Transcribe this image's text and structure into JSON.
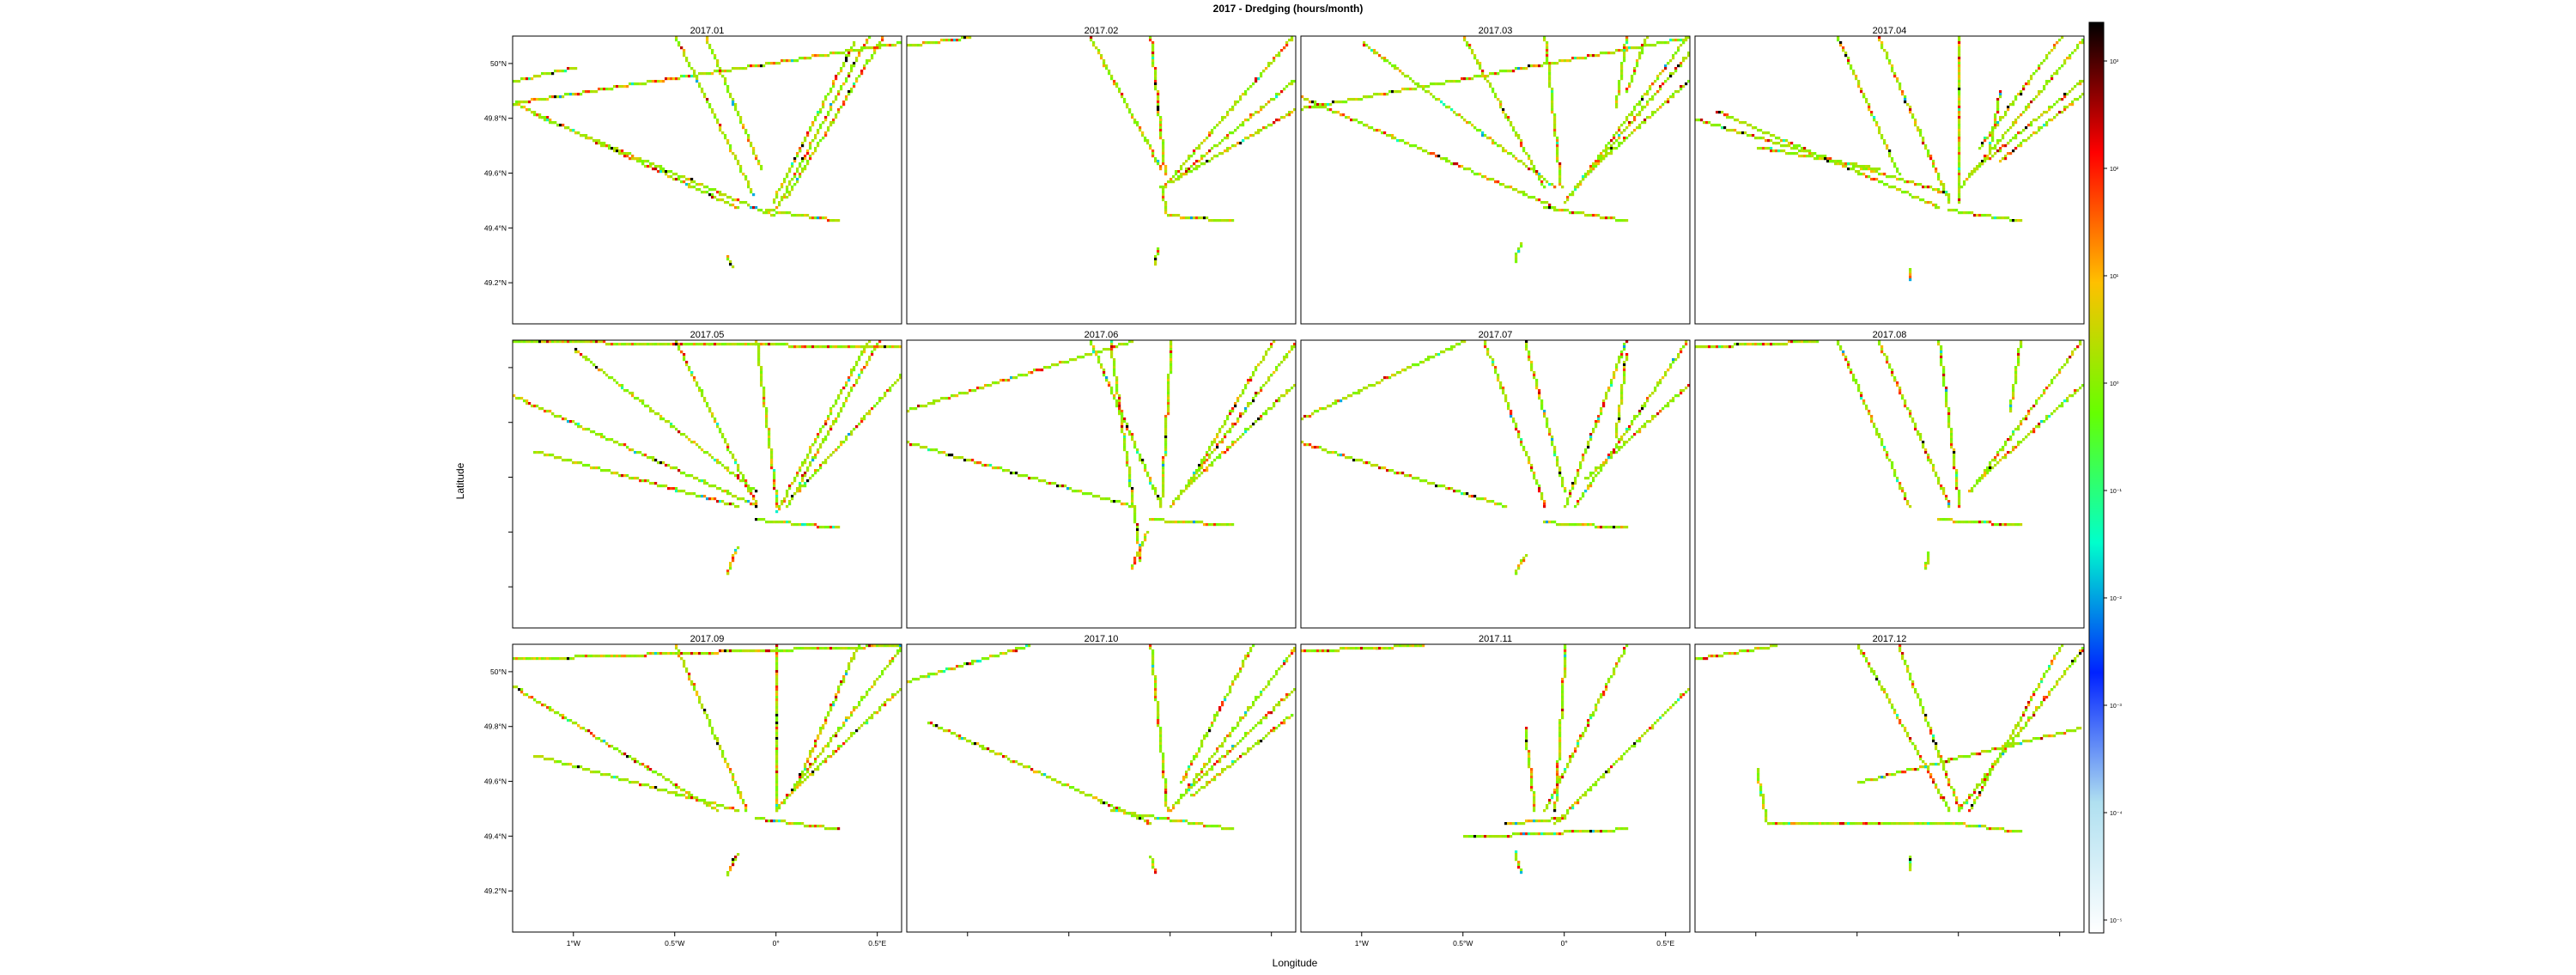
{
  "chart_data": {
    "type": "heatmap",
    "title": "2017 - Dredging (hours/month)",
    "xlabel": "Longitude",
    "ylabel": "Latitude",
    "xlim": [
      -1.3,
      0.62
    ],
    "ylim": [
      49.05,
      50.1
    ],
    "x_ticks": [
      {
        "value": -1.0,
        "label": "1°W"
      },
      {
        "value": -0.5,
        "label": "0.5°W"
      },
      {
        "value": 0.0,
        "label": "0°"
      },
      {
        "value": 0.5,
        "label": "0.5°E"
      }
    ],
    "y_ticks": [
      {
        "value": 50.0,
        "label": "50°N"
      },
      {
        "value": 49.8,
        "label": "49.8°N"
      },
      {
        "value": 49.6,
        "label": "49.6°N"
      },
      {
        "value": 49.4,
        "label": "49.4°N"
      },
      {
        "value": 49.2,
        "label": "49.2°N"
      }
    ],
    "colorbar": {
      "scale": "log",
      "min_exp": -5,
      "max_exp": 3,
      "labels": [
        "10³",
        "10²",
        "10¹",
        "10⁰",
        "10⁻¹",
        "10⁻²",
        "10⁻³",
        "10⁻⁴",
        "10⁻⁵"
      ],
      "colors": [
        "#000000",
        "#ff0000",
        "#ffc000",
        "#66ff00",
        "#00ffcc",
        "#0022ff",
        "#b0e0f0",
        "#ffffff"
      ]
    },
    "panels": [
      {
        "label": "2017.01"
      },
      {
        "label": "2017.02"
      },
      {
        "label": "2017.03"
      },
      {
        "label": "2017.04"
      },
      {
        "label": "2017.05"
      },
      {
        "label": "2017.06"
      },
      {
        "label": "2017.07"
      },
      {
        "label": "2017.08"
      },
      {
        "label": "2017.09"
      },
      {
        "label": "2017.10"
      },
      {
        "label": "2017.11"
      },
      {
        "label": "2017.12"
      }
    ],
    "panel_tracks": [
      [
        [
          [
            -1.3,
            49.86
          ],
          [
            -0.2,
            49.48
          ]
        ],
        [
          [
            -1.3,
            49.94
          ],
          [
            -1.0,
            49.99
          ]
        ],
        [
          [
            -1.3,
            49.86
          ],
          [
            0.62,
            50.08
          ]
        ],
        [
          [
            -1.2,
            49.82
          ],
          [
            -0.02,
            49.45
          ]
        ],
        [
          [
            -0.5,
            50.1
          ],
          [
            -0.12,
            49.53
          ]
        ],
        [
          [
            -0.35,
            50.1
          ],
          [
            -0.08,
            49.62
          ]
        ],
        [
          [
            0.45,
            50.1
          ],
          [
            0.0,
            49.48
          ]
        ],
        [
          [
            0.52,
            50.1
          ],
          [
            0.05,
            49.52
          ]
        ],
        [
          [
            0.38,
            50.08
          ],
          [
            -0.02,
            49.5
          ]
        ],
        [
          [
            -0.05,
            49.47
          ],
          [
            0.3,
            49.43
          ]
        ],
        [
          [
            -0.25,
            49.3
          ],
          [
            -0.22,
            49.26
          ]
        ]
      ],
      [
        [
          [
            -1.3,
            50.07
          ],
          [
            -1.0,
            50.1
          ]
        ],
        [
          [
            -0.4,
            50.1
          ],
          [
            -0.05,
            49.62
          ]
        ],
        [
          [
            -0.1,
            50.1
          ],
          [
            -0.03,
            49.6
          ]
        ],
        [
          [
            0.62,
            49.95
          ],
          [
            0.0,
            49.57
          ]
        ],
        [
          [
            0.6,
            50.1
          ],
          [
            -0.04,
            49.55
          ]
        ],
        [
          [
            0.62,
            49.84
          ],
          [
            0.02,
            49.58
          ]
        ],
        [
          [
            -0.05,
            49.55
          ],
          [
            -0.02,
            49.45
          ]
        ],
        [
          [
            -0.02,
            49.45
          ],
          [
            0.3,
            49.43
          ]
        ],
        [
          [
            -0.07,
            49.33
          ],
          [
            -0.08,
            49.27
          ]
        ]
      ],
      [
        [
          [
            -1.3,
            49.88
          ],
          [
            -0.05,
            49.48
          ]
        ],
        [
          [
            -1.3,
            49.84
          ],
          [
            0.62,
            50.1
          ]
        ],
        [
          [
            -1.0,
            50.08
          ],
          [
            -0.05,
            49.55
          ]
        ],
        [
          [
            -0.5,
            50.1
          ],
          [
            -0.1,
            49.55
          ]
        ],
        [
          [
            -0.1,
            50.1
          ],
          [
            -0.02,
            49.55
          ]
        ],
        [
          [
            0.6,
            50.1
          ],
          [
            0.0,
            49.5
          ]
        ],
        [
          [
            0.62,
            50.05
          ],
          [
            0.05,
            49.55
          ]
        ],
        [
          [
            0.62,
            49.95
          ],
          [
            0.1,
            49.6
          ]
        ],
        [
          [
            0.3,
            50.1
          ],
          [
            0.25,
            49.85
          ]
        ],
        [
          [
            0.4,
            50.1
          ],
          [
            0.3,
            49.9
          ]
        ],
        [
          [
            -0.1,
            49.48
          ],
          [
            0.3,
            49.43
          ]
        ],
        [
          [
            -0.22,
            49.35
          ],
          [
            -0.25,
            49.28
          ]
        ]
      ],
      [
        [
          [
            -1.2,
            49.83
          ],
          [
            -0.1,
            49.48
          ]
        ],
        [
          [
            -1.3,
            49.8
          ],
          [
            -0.05,
            49.53
          ]
        ],
        [
          [
            -1.0,
            49.7
          ],
          [
            -0.4,
            49.62
          ]
        ],
        [
          [
            -0.6,
            50.1
          ],
          [
            -0.3,
            49.6
          ]
        ],
        [
          [
            -0.4,
            50.1
          ],
          [
            -0.05,
            49.5
          ]
        ],
        [
          [
            0.0,
            50.1
          ],
          [
            0.0,
            49.5
          ]
        ],
        [
          [
            0.62,
            50.1
          ],
          [
            0.0,
            49.55
          ]
        ],
        [
          [
            0.62,
            49.95
          ],
          [
            0.05,
            49.6
          ]
        ],
        [
          [
            0.5,
            50.1
          ],
          [
            0.1,
            49.7
          ]
        ],
        [
          [
            0.62,
            49.9
          ],
          [
            0.2,
            49.65
          ]
        ],
        [
          [
            -0.05,
            49.47
          ],
          [
            0.3,
            49.43
          ]
        ],
        [
          [
            0.2,
            49.9
          ],
          [
            0.15,
            49.7
          ]
        ],
        [
          [
            -0.25,
            49.25
          ],
          [
            -0.25,
            49.22
          ]
        ]
      ],
      [
        [
          [
            -1.3,
            49.9
          ],
          [
            -0.1,
            49.5
          ]
        ],
        [
          [
            -1.3,
            50.1
          ],
          [
            0.62,
            50.08
          ]
        ],
        [
          [
            -1.2,
            49.7
          ],
          [
            -0.2,
            49.5
          ]
        ],
        [
          [
            -1.0,
            50.07
          ],
          [
            -0.1,
            49.55
          ]
        ],
        [
          [
            -0.5,
            50.1
          ],
          [
            -0.1,
            49.5
          ]
        ],
        [
          [
            -0.1,
            50.1
          ],
          [
            0.0,
            49.5
          ]
        ],
        [
          [
            0.45,
            50.1
          ],
          [
            0.0,
            49.48
          ]
        ],
        [
          [
            0.5,
            50.1
          ],
          [
            0.05,
            49.5
          ]
        ],
        [
          [
            0.62,
            49.98
          ],
          [
            0.1,
            49.55
          ]
        ],
        [
          [
            -0.1,
            49.45
          ],
          [
            0.3,
            49.42
          ]
        ],
        [
          [
            -0.2,
            49.35
          ],
          [
            -0.25,
            49.25
          ]
        ]
      ],
      [
        [
          [
            -1.3,
            49.85
          ],
          [
            -0.2,
            50.1
          ]
        ],
        [
          [
            -1.3,
            49.73
          ],
          [
            -0.2,
            49.5
          ]
        ],
        [
          [
            -0.3,
            50.1
          ],
          [
            -0.15,
            49.3
          ]
        ],
        [
          [
            -0.4,
            50.1
          ],
          [
            -0.05,
            49.5
          ]
        ],
        [
          [
            0.0,
            50.1
          ],
          [
            -0.05,
            49.5
          ]
        ],
        [
          [
            0.62,
            50.1
          ],
          [
            0.0,
            49.5
          ]
        ],
        [
          [
            0.62,
            49.95
          ],
          [
            0.05,
            49.55
          ]
        ],
        [
          [
            0.5,
            50.1
          ],
          [
            0.1,
            49.6
          ]
        ],
        [
          [
            -0.1,
            49.45
          ],
          [
            0.3,
            49.43
          ]
        ],
        [
          [
            -0.12,
            49.4
          ],
          [
            -0.2,
            49.27
          ]
        ]
      ],
      [
        [
          [
            -1.3,
            49.82
          ],
          [
            -0.5,
            50.1
          ]
        ],
        [
          [
            -1.3,
            49.73
          ],
          [
            -0.3,
            49.5
          ]
        ],
        [
          [
            -0.4,
            50.1
          ],
          [
            -0.1,
            49.5
          ]
        ],
        [
          [
            -0.2,
            50.1
          ],
          [
            0.0,
            49.55
          ]
        ],
        [
          [
            0.3,
            50.1
          ],
          [
            0.0,
            49.5
          ]
        ],
        [
          [
            0.6,
            50.1
          ],
          [
            0.05,
            49.5
          ]
        ],
        [
          [
            0.62,
            49.95
          ],
          [
            0.1,
            49.6
          ]
        ],
        [
          [
            0.3,
            50.05
          ],
          [
            0.25,
            49.75
          ]
        ],
        [
          [
            -0.1,
            49.44
          ],
          [
            0.3,
            49.42
          ]
        ],
        [
          [
            -0.2,
            49.32
          ],
          [
            -0.25,
            49.25
          ]
        ]
      ],
      [
        [
          [
            -1.3,
            50.08
          ],
          [
            -0.7,
            50.1
          ]
        ],
        [
          [
            -0.6,
            50.1
          ],
          [
            -0.25,
            49.5
          ]
        ],
        [
          [
            -0.4,
            50.1
          ],
          [
            -0.05,
            49.5
          ]
        ],
        [
          [
            -0.1,
            50.1
          ],
          [
            0.0,
            49.5
          ]
        ],
        [
          [
            0.6,
            50.1
          ],
          [
            0.05,
            49.55
          ]
        ],
        [
          [
            0.62,
            49.95
          ],
          [
            0.1,
            49.6
          ]
        ],
        [
          [
            0.3,
            50.1
          ],
          [
            0.25,
            49.85
          ]
        ],
        [
          [
            -0.1,
            49.45
          ],
          [
            0.3,
            49.43
          ]
        ],
        [
          [
            -0.15,
            49.33
          ],
          [
            -0.17,
            49.27
          ]
        ]
      ],
      [
        [
          [
            -1.3,
            50.05
          ],
          [
            0.62,
            50.1
          ]
        ],
        [
          [
            -1.3,
            49.95
          ],
          [
            -0.3,
            49.5
          ]
        ],
        [
          [
            -1.2,
            49.7
          ],
          [
            -0.2,
            49.5
          ]
        ],
        [
          [
            -0.5,
            50.1
          ],
          [
            -0.15,
            49.5
          ]
        ],
        [
          [
            0.0,
            50.1
          ],
          [
            0.0,
            49.5
          ]
        ],
        [
          [
            0.62,
            50.1
          ],
          [
            0.0,
            49.5
          ]
        ],
        [
          [
            0.62,
            49.95
          ],
          [
            0.05,
            49.55
          ]
        ],
        [
          [
            0.4,
            50.1
          ],
          [
            0.1,
            49.6
          ]
        ],
        [
          [
            -0.1,
            49.47
          ],
          [
            0.3,
            49.43
          ]
        ],
        [
          [
            -0.2,
            49.34
          ],
          [
            -0.25,
            49.26
          ]
        ]
      ],
      [
        [
          [
            -1.3,
            49.97
          ],
          [
            -0.7,
            50.1
          ]
        ],
        [
          [
            -1.2,
            49.82
          ],
          [
            -0.1,
            49.45
          ]
        ],
        [
          [
            -0.1,
            50.1
          ],
          [
            -0.02,
            49.5
          ]
        ],
        [
          [
            0.62,
            50.1
          ],
          [
            0.0,
            49.5
          ]
        ],
        [
          [
            0.62,
            49.95
          ],
          [
            0.05,
            49.55
          ]
        ],
        [
          [
            0.6,
            49.85
          ],
          [
            0.1,
            49.55
          ]
        ],
        [
          [
            0.4,
            50.1
          ],
          [
            0.05,
            49.6
          ]
        ],
        [
          [
            -0.3,
            49.5
          ],
          [
            0.3,
            49.43
          ]
        ],
        [
          [
            -0.1,
            49.33
          ],
          [
            -0.08,
            49.27
          ]
        ]
      ],
      [
        [
          [
            -1.3,
            50.08
          ],
          [
            -0.7,
            50.1
          ]
        ],
        [
          [
            -0.5,
            49.4
          ],
          [
            0.3,
            49.43
          ]
        ],
        [
          [
            -0.3,
            49.45
          ],
          [
            0.0,
            49.47
          ]
        ],
        [
          [
            0.62,
            49.95
          ],
          [
            -0.05,
            49.45
          ]
        ],
        [
          [
            0.3,
            50.1
          ],
          [
            -0.1,
            49.5
          ]
        ],
        [
          [
            0.0,
            50.1
          ],
          [
            -0.05,
            49.5
          ]
        ],
        [
          [
            -0.2,
            49.8
          ],
          [
            -0.15,
            49.5
          ]
        ],
        [
          [
            -0.25,
            49.35
          ],
          [
            -0.22,
            49.27
          ]
        ]
      ],
      [
        [
          [
            -1.3,
            50.05
          ],
          [
            -0.9,
            50.1
          ]
        ],
        [
          [
            -1.0,
            49.65
          ],
          [
            -0.95,
            49.45
          ]
        ],
        [
          [
            -0.95,
            49.45
          ],
          [
            0.0,
            49.45
          ]
        ],
        [
          [
            -0.5,
            50.1
          ],
          [
            -0.05,
            49.5
          ]
        ],
        [
          [
            -0.3,
            50.1
          ],
          [
            0.0,
            49.5
          ]
        ],
        [
          [
            0.62,
            50.1
          ],
          [
            0.0,
            49.5
          ]
        ],
        [
          [
            0.5,
            50.1
          ],
          [
            0.05,
            49.5
          ]
        ],
        [
          [
            0.6,
            49.8
          ],
          [
            -0.5,
            49.6
          ]
        ],
        [
          [
            0.0,
            49.45
          ],
          [
            0.3,
            49.42
          ]
        ],
        [
          [
            -0.25,
            49.33
          ],
          [
            -0.25,
            49.28
          ]
        ]
      ]
    ]
  }
}
